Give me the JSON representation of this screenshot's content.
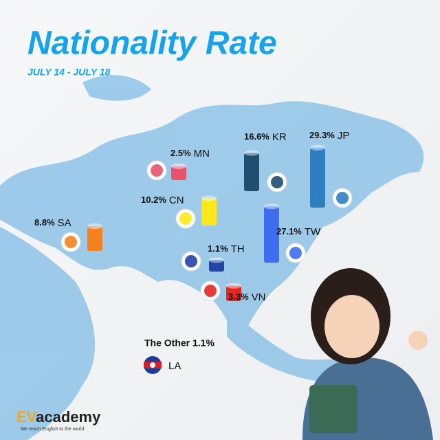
{
  "chart_data": {
    "type": "bar",
    "title": "Nationality Rate",
    "subtitle": "JULY 14 - JULY 18",
    "categories": [
      "MN",
      "KR",
      "JP",
      "CN",
      "TW",
      "SA",
      "TH",
      "VN"
    ],
    "values": [
      2.5,
      16.6,
      29.3,
      10.2,
      27.1,
      8.8,
      1.1,
      3.3
    ],
    "value_labels": [
      "2.5%",
      "16.6%",
      "29.3%",
      "10.2%",
      "27.1%",
      "8.8%",
      "1.1%",
      "3.3%"
    ],
    "colors": [
      "#e8536b",
      "#1f4e6e",
      "#2d7fc1",
      "#ffe81a",
      "#3d6df0",
      "#f5821f",
      "#2343a5",
      "#e52521"
    ],
    "other_label": "The Other 1.1%",
    "other_code": "LA",
    "logo": {
      "name_ev": "EV",
      "name_rest": "academy",
      "tagline": "We teach English to the world"
    }
  }
}
